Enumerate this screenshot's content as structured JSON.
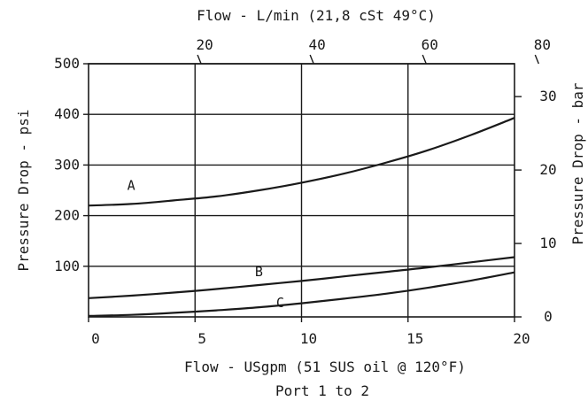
{
  "chart_data": {
    "type": "line",
    "title_top": "Flow - L/min (21,8 cSt 49°C)",
    "xlabel": "Flow - USgpm (51 SUS oil @ 120°F)",
    "footer": "Port 1 to 2",
    "ylabel_left": "Pressure Drop - psi",
    "ylabel_right": "Pressure Drop - bar",
    "xlim": [
      0,
      20
    ],
    "ylim": [
      0,
      500
    ],
    "x_ticks": [
      "0",
      "5",
      "10",
      "15",
      "20"
    ],
    "y_ticks_left": [
      "100",
      "200",
      "300",
      "400",
      "500"
    ],
    "top_ticks": [
      "20",
      "40",
      "60",
      "80"
    ],
    "right_ticks": [
      "0",
      "10",
      "20",
      "30"
    ],
    "grid": true,
    "series": [
      {
        "name": "A",
        "x": [
          0,
          2,
          4,
          6,
          8,
          10,
          12,
          14,
          16,
          18,
          20
        ],
        "values": [
          220,
          223,
          230,
          238,
          250,
          265,
          283,
          305,
          330,
          360,
          393
        ]
      },
      {
        "name": "B",
        "x": [
          0,
          2,
          4,
          6,
          8,
          10,
          12,
          14,
          16,
          18,
          20
        ],
        "values": [
          37,
          42,
          48,
          55,
          63,
          71,
          80,
          89,
          98,
          108,
          118
        ]
      },
      {
        "name": "C",
        "x": [
          0,
          2,
          4,
          6,
          8,
          10,
          12,
          14,
          16,
          18,
          20
        ],
        "values": [
          2,
          4,
          8,
          13,
          19,
          27,
          36,
          46,
          58,
          72,
          88
        ]
      }
    ]
  }
}
